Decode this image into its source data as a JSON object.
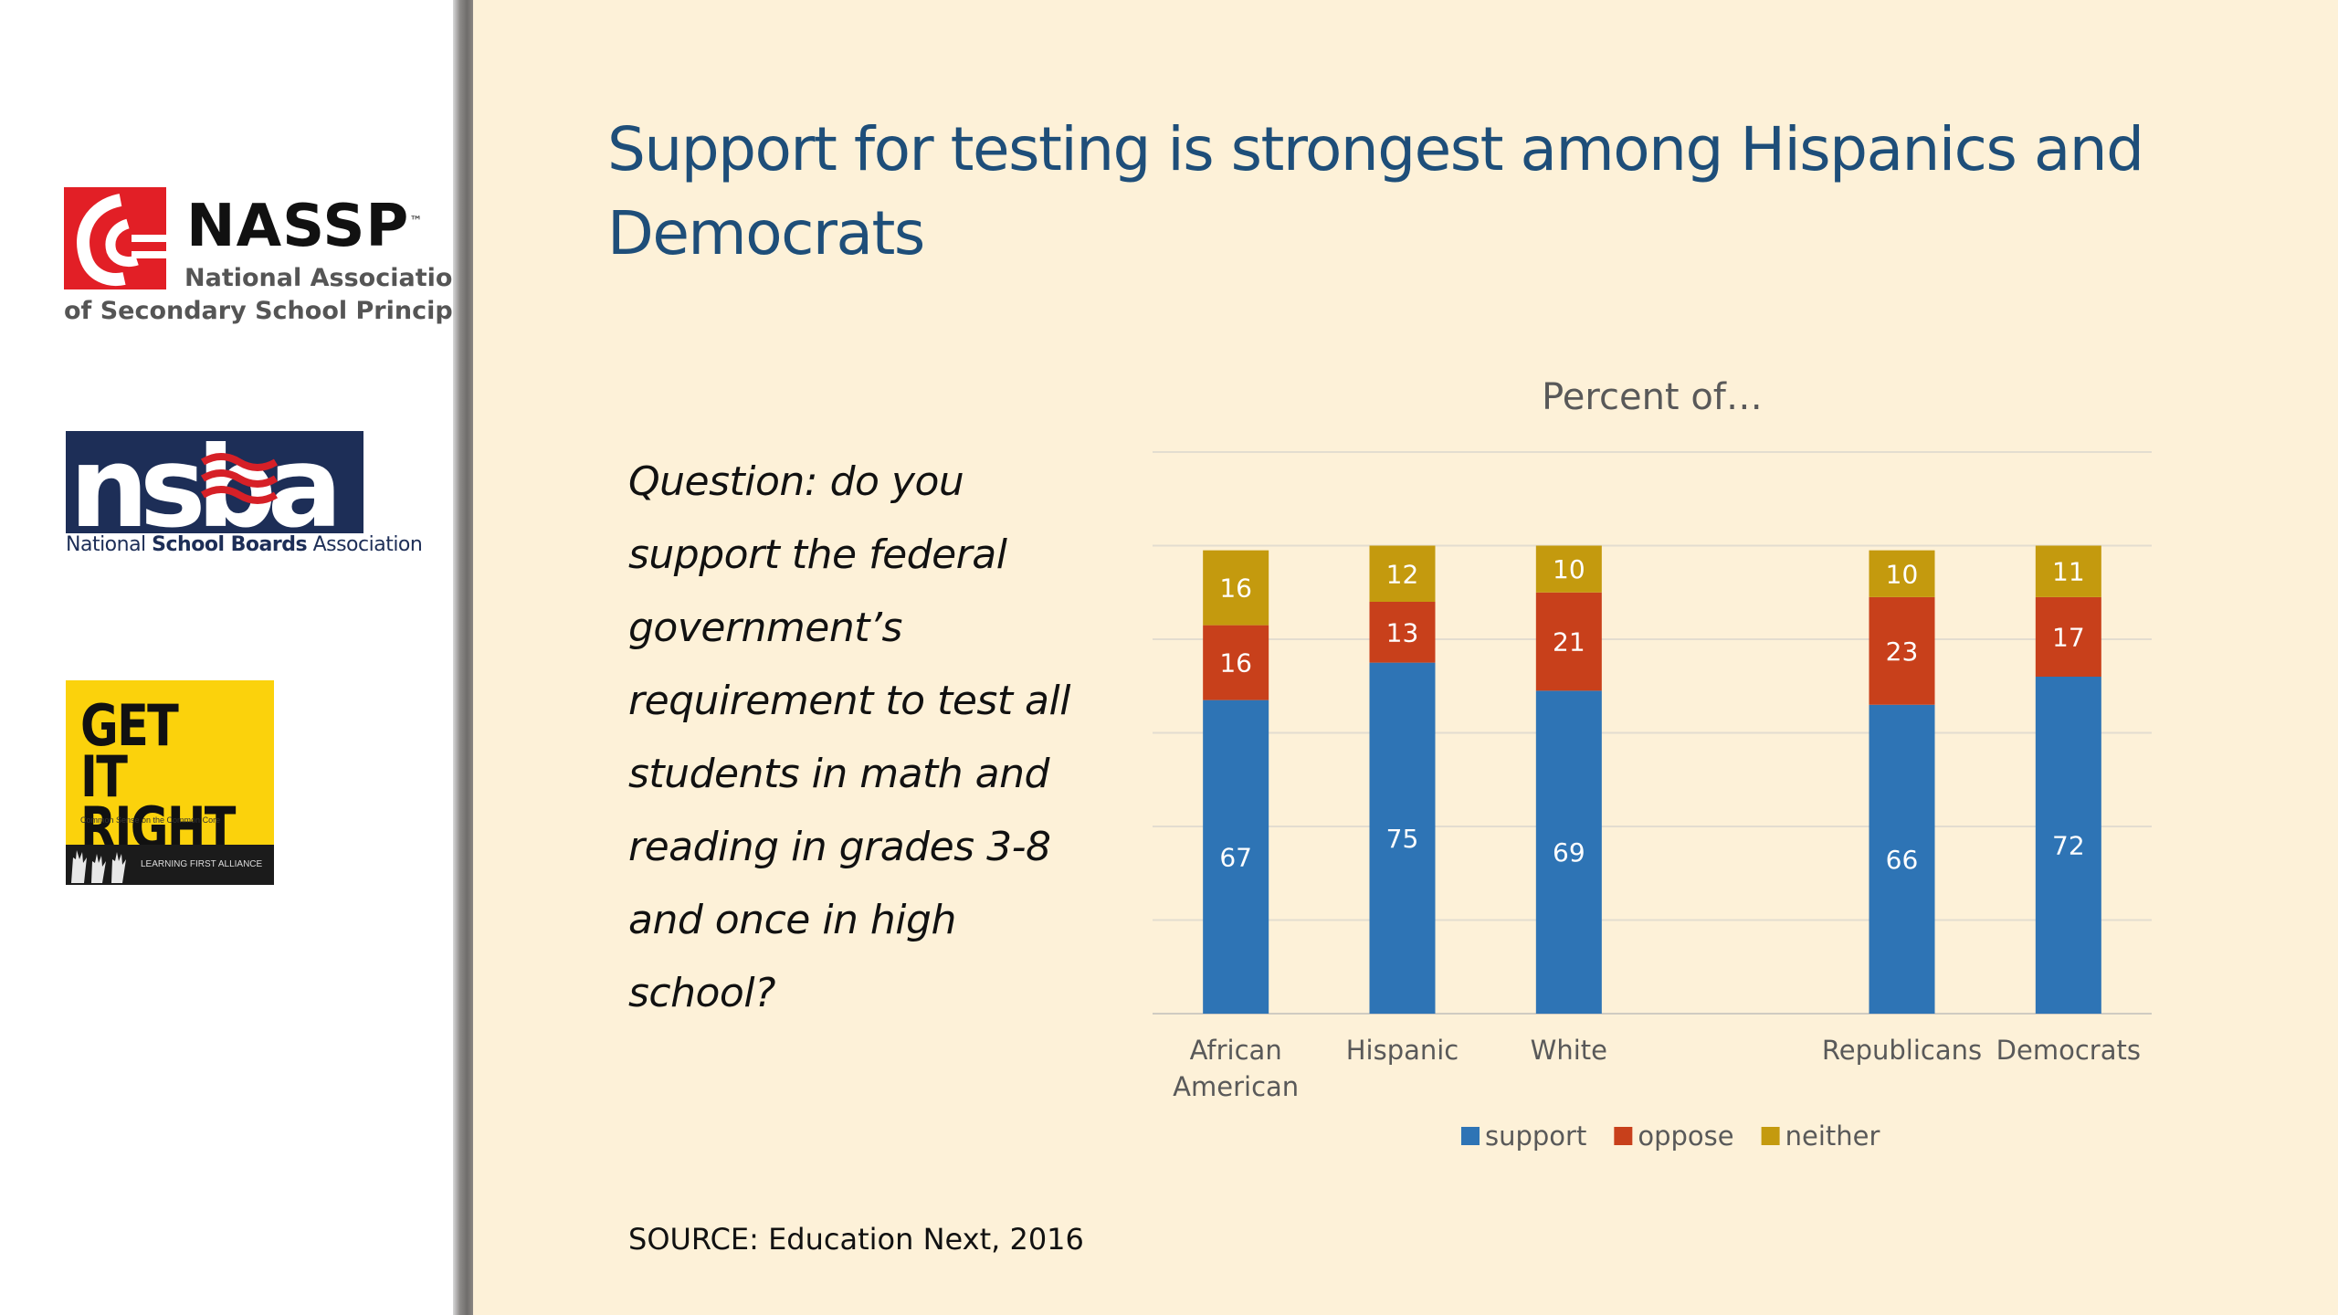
{
  "sidebar": {
    "nassp": {
      "wordmark": "NASSP",
      "trademark": "™",
      "line1": "National Association",
      "line2": "of Secondary School Principals"
    },
    "nsba": {
      "wordmark": "nsba",
      "caption_pre": "National ",
      "caption_bold": "School Boards",
      "caption_post": " Association"
    },
    "get_it_right": {
      "title_line1": "GET IT",
      "title_line2": "RIGHT",
      "tagline": "Common Sense on the Common Core",
      "alliance": "LEARNING FIRST ALLIANCE"
    }
  },
  "slide": {
    "title": "Support for testing is strongest among Hispanics and Democrats",
    "question": "Question: do you support the federal government’s requirement to test all students in math and reading in grades 3-8 and once in high school?",
    "source": "SOURCE: Education Next, 2016"
  },
  "colors": {
    "support": "#2e74b5",
    "oppose": "#c8401b",
    "neither": "#c49a0e",
    "title": "#1e4e79",
    "background": "#fdf1d8"
  },
  "chart_data": {
    "type": "bar",
    "stacked": true,
    "title": "Percent of…",
    "categories": [
      "African American",
      "Hispanic",
      "White",
      "Republicans",
      "Democrats"
    ],
    "category_lines": [
      [
        "African",
        "American"
      ],
      [
        "Hispanic"
      ],
      [
        "White"
      ],
      [
        "Republicans"
      ],
      [
        "Democrats"
      ]
    ],
    "gap_before_index": 3,
    "series": [
      {
        "name": "support",
        "values": [
          67,
          75,
          69,
          66,
          72
        ]
      },
      {
        "name": "oppose",
        "values": [
          16,
          13,
          21,
          23,
          17
        ]
      },
      {
        "name": "neither",
        "values": [
          16,
          12,
          10,
          10,
          11
        ]
      }
    ],
    "ylim": [
      0,
      120
    ],
    "grid": true,
    "legend": "bottom",
    "data_labels": true
  }
}
